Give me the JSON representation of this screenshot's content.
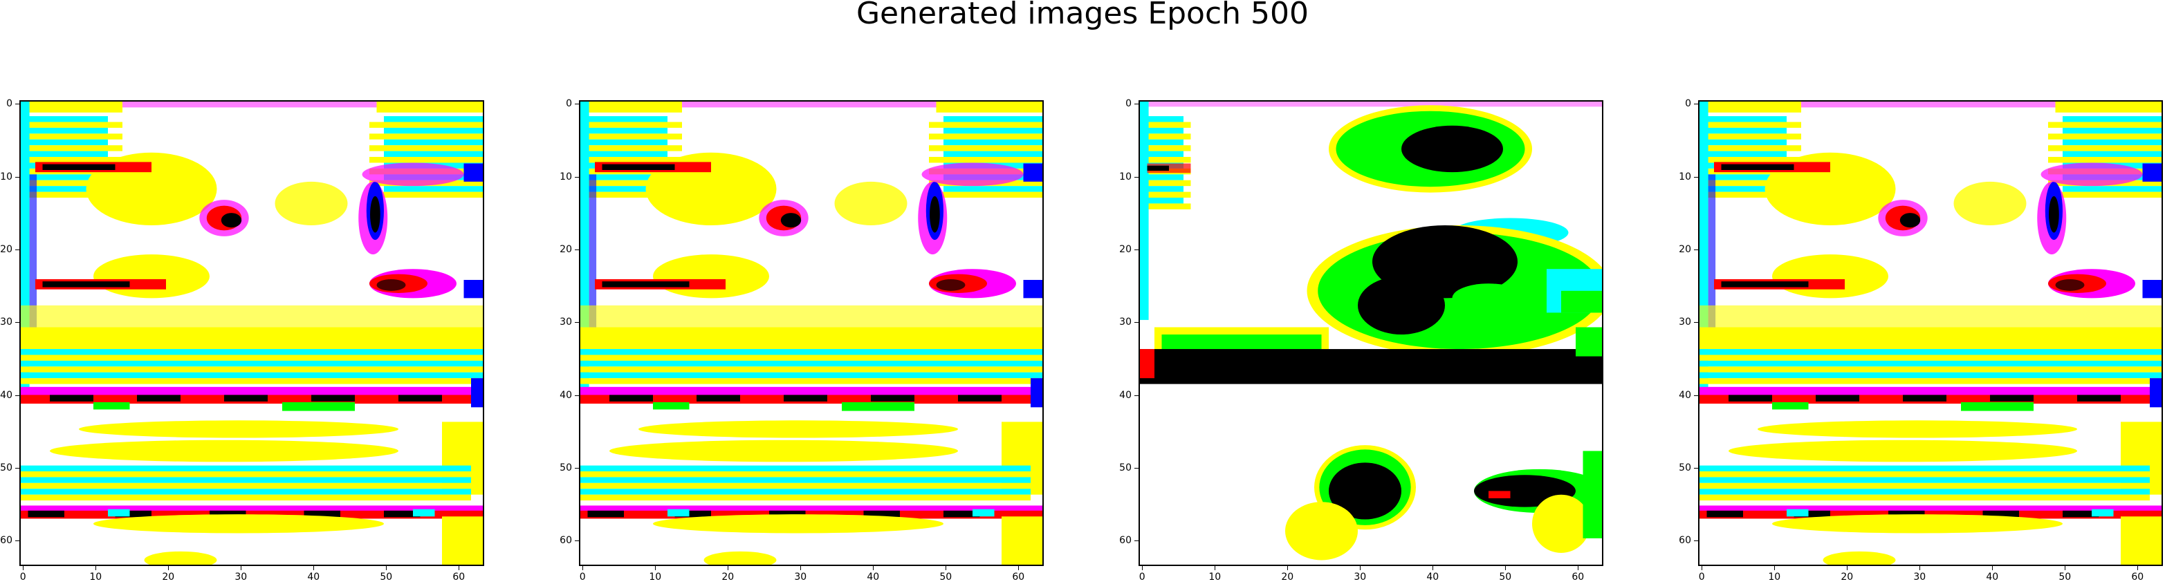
{
  "figure": {
    "title": "Generated images Epoch 500"
  },
  "axes": {
    "x_ticks": [
      "0",
      "10",
      "20",
      "30",
      "40",
      "50",
      "60"
    ],
    "y_ticks": [
      "0",
      "10",
      "20",
      "30",
      "40",
      "50",
      "60"
    ],
    "x_range": [
      0,
      64
    ],
    "y_range": [
      0,
      64
    ]
  },
  "panels": [
    {
      "name": "generated-image-1",
      "variant": "striped"
    },
    {
      "name": "generated-image-2",
      "variant": "striped"
    },
    {
      "name": "generated-image-3",
      "variant": "blobs"
    },
    {
      "name": "generated-image-4",
      "variant": "striped"
    }
  ],
  "palette": {
    "white": "#ffffff",
    "yellow": "#ffff00",
    "cyan": "#00ffff",
    "magenta": "#ff00ff",
    "green": "#00ff00",
    "red": "#ff0000",
    "blue": "#0000ff",
    "black": "#000000"
  }
}
